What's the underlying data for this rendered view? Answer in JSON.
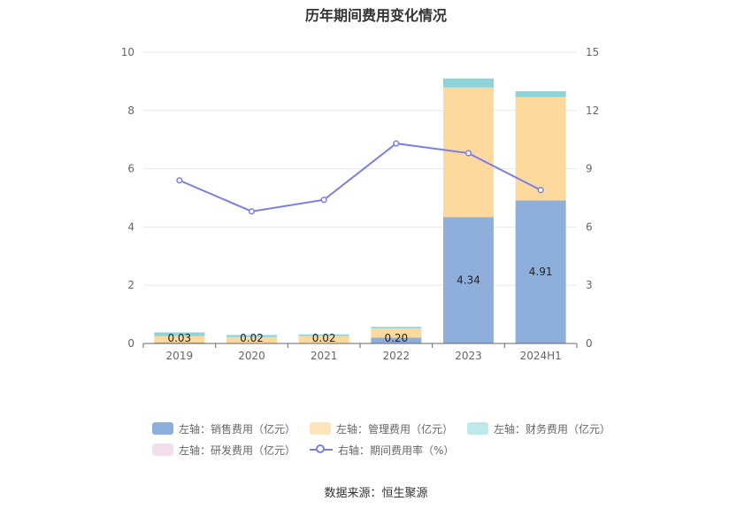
{
  "chart_data": {
    "type": "bar",
    "title": "历年期间费用变化情况",
    "categories": [
      "2019",
      "2020",
      "2021",
      "2022",
      "2023",
      "2024H1"
    ],
    "y_left": {
      "ylim": [
        0,
        10
      ],
      "ticks": [
        "0",
        "2",
        "4",
        "6",
        "8",
        "10"
      ]
    },
    "y_right": {
      "ylim": [
        0,
        15
      ],
      "ticks": [
        "0",
        "3",
        "6",
        "9",
        "12",
        "15"
      ]
    },
    "series": [
      {
        "name": "左轴：销售费用（亿元）",
        "type": "bar",
        "axis": "left",
        "color": "#8eaedc",
        "values": [
          0.03,
          0.02,
          0.02,
          0.2,
          4.34,
          4.91
        ],
        "labels": [
          "0.03",
          "0.02",
          "0.02",
          "0.20",
          "4.34",
          "4.91"
        ]
      },
      {
        "name": "左轴：管理费用（亿元）",
        "type": "bar",
        "axis": "left",
        "color": "#fdd99d",
        "values": [
          0.22,
          0.2,
          0.24,
          0.32,
          4.45,
          3.55
        ]
      },
      {
        "name": "左轴：财务费用（亿元）",
        "type": "bar",
        "axis": "left",
        "color": "#8dd4d8",
        "values": [
          0.13,
          0.07,
          0.05,
          0.05,
          0.31,
          0.2
        ]
      },
      {
        "name": "左轴：研发费用（亿元）",
        "type": "bar",
        "axis": "left",
        "color": "#f3dcec",
        "values": [
          0,
          0,
          0,
          0,
          0,
          0
        ]
      },
      {
        "name": "右轴：期间费用率（%）",
        "type": "line",
        "axis": "right",
        "color": "#7a7ee8",
        "values": [
          8.4,
          6.8,
          7.4,
          10.3,
          9.8,
          7.9
        ]
      }
    ],
    "legend_position": "bottom",
    "grid": true
  },
  "source": "数据来源：恒生聚源"
}
